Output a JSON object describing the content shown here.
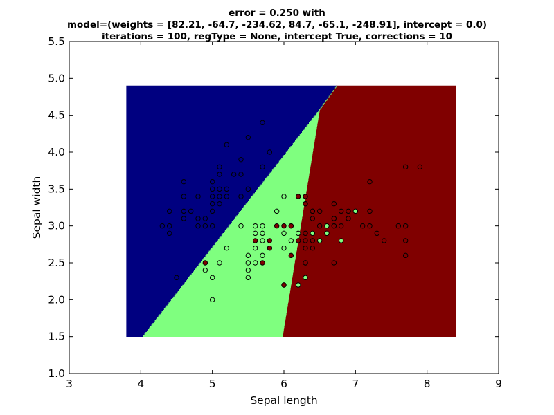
{
  "chart_data": {
    "type": "scatter",
    "title_lines": [
      "error = 0.250 with",
      "model=(weights = [82.21, -64.7, -234.62, 84.7, -65.1, -248.91], intercept = 0.0)",
      "iterations = 100, regType = None, intercept True, corrections = 10"
    ],
    "xlabel": "Sepal length",
    "ylabel": "Sepal width",
    "xlim": [
      3,
      9
    ],
    "ylim": [
      1.0,
      5.5
    ],
    "xticks": [
      "3",
      "4",
      "5",
      "6",
      "7",
      "8",
      "9"
    ],
    "yticks": [
      "1.0",
      "1.5",
      "2.0",
      "2.5",
      "3.0",
      "3.5",
      "4.0",
      "4.5",
      "5.0",
      "5.5"
    ],
    "grid": false,
    "legend": "none",
    "colors": {
      "class0": "#000080",
      "class1": "#7fff7f",
      "class2": "#800000"
    },
    "decision_regions": {
      "x_range": [
        3.8,
        8.4
      ],
      "y_range": [
        1.5,
        4.9
      ],
      "boundary_0_1": [
        [
          4.03,
          1.5
        ],
        [
          6.52,
          4.6
        ],
        [
          6.74,
          4.9
        ]
      ],
      "boundary_1_2": [
        [
          5.98,
          1.5
        ],
        [
          6.52,
          4.7
        ]
      ]
    },
    "points": [
      {
        "x": 4.3,
        "y": 3.0,
        "c": 0
      },
      {
        "x": 4.4,
        "y": 2.9,
        "c": 0
      },
      {
        "x": 4.4,
        "y": 3.0,
        "c": 0
      },
      {
        "x": 4.4,
        "y": 3.2,
        "c": 0
      },
      {
        "x": 4.5,
        "y": 2.3,
        "c": 0
      },
      {
        "x": 4.6,
        "y": 3.1,
        "c": 0
      },
      {
        "x": 4.6,
        "y": 3.2,
        "c": 0
      },
      {
        "x": 4.6,
        "y": 3.4,
        "c": 0
      },
      {
        "x": 4.6,
        "y": 3.6,
        "c": 0
      },
      {
        "x": 4.7,
        "y": 3.2,
        "c": 0
      },
      {
        "x": 4.8,
        "y": 3.0,
        "c": 0
      },
      {
        "x": 4.8,
        "y": 3.1,
        "c": 0
      },
      {
        "x": 4.8,
        "y": 3.4,
        "c": 0
      },
      {
        "x": 4.9,
        "y": 3.0,
        "c": 0
      },
      {
        "x": 4.9,
        "y": 3.1,
        "c": 0
      },
      {
        "x": 5.0,
        "y": 3.0,
        "c": 0
      },
      {
        "x": 5.0,
        "y": 3.2,
        "c": 0
      },
      {
        "x": 5.0,
        "y": 3.3,
        "c": 0
      },
      {
        "x": 5.0,
        "y": 3.4,
        "c": 0
      },
      {
        "x": 5.0,
        "y": 3.5,
        "c": 0
      },
      {
        "x": 5.0,
        "y": 3.6,
        "c": 0
      },
      {
        "x": 5.1,
        "y": 3.3,
        "c": 0
      },
      {
        "x": 5.1,
        "y": 3.4,
        "c": 0
      },
      {
        "x": 5.1,
        "y": 3.5,
        "c": 0
      },
      {
        "x": 5.1,
        "y": 3.7,
        "c": 0
      },
      {
        "x": 5.1,
        "y": 3.8,
        "c": 0
      },
      {
        "x": 5.2,
        "y": 3.4,
        "c": 0
      },
      {
        "x": 5.2,
        "y": 3.5,
        "c": 0
      },
      {
        "x": 5.2,
        "y": 4.1,
        "c": 0
      },
      {
        "x": 5.3,
        "y": 3.7,
        "c": 0
      },
      {
        "x": 5.4,
        "y": 3.4,
        "c": 0
      },
      {
        "x": 5.4,
        "y": 3.7,
        "c": 0
      },
      {
        "x": 5.4,
        "y": 3.9,
        "c": 0
      },
      {
        "x": 5.5,
        "y": 3.5,
        "c": 0
      },
      {
        "x": 5.5,
        "y": 4.2,
        "c": 0
      },
      {
        "x": 5.7,
        "y": 3.8,
        "c": 0
      },
      {
        "x": 5.7,
        "y": 4.4,
        "c": 0
      },
      {
        "x": 5.8,
        "y": 4.0,
        "c": 0
      },
      {
        "x": 4.9,
        "y": 2.4,
        "c": 1
      },
      {
        "x": 5.0,
        "y": 2.0,
        "c": 1
      },
      {
        "x": 5.0,
        "y": 2.3,
        "c": 1
      },
      {
        "x": 5.1,
        "y": 2.5,
        "c": 1
      },
      {
        "x": 5.2,
        "y": 2.7,
        "c": 1
      },
      {
        "x": 5.4,
        "y": 3.0,
        "c": 1
      },
      {
        "x": 5.5,
        "y": 2.3,
        "c": 1
      },
      {
        "x": 5.5,
        "y": 2.4,
        "c": 1
      },
      {
        "x": 5.5,
        "y": 2.5,
        "c": 1
      },
      {
        "x": 5.5,
        "y": 2.6,
        "c": 1
      },
      {
        "x": 5.6,
        "y": 2.5,
        "c": 1
      },
      {
        "x": 5.6,
        "y": 2.7,
        "c": 1
      },
      {
        "x": 5.6,
        "y": 2.9,
        "c": 1
      },
      {
        "x": 5.6,
        "y": 3.0,
        "c": 1
      },
      {
        "x": 5.7,
        "y": 2.6,
        "c": 1
      },
      {
        "x": 5.7,
        "y": 2.8,
        "c": 1
      },
      {
        "x": 5.7,
        "y": 2.9,
        "c": 1
      },
      {
        "x": 5.7,
        "y": 3.0,
        "c": 1
      },
      {
        "x": 5.8,
        "y": 2.7,
        "c": 1
      },
      {
        "x": 5.9,
        "y": 3.2,
        "c": 1
      },
      {
        "x": 6.0,
        "y": 2.2,
        "c": 1
      },
      {
        "x": 6.0,
        "y": 2.7,
        "c": 1
      },
      {
        "x": 6.0,
        "y": 2.9,
        "c": 1
      },
      {
        "x": 6.0,
        "y": 3.4,
        "c": 1
      },
      {
        "x": 6.1,
        "y": 2.8,
        "c": 1
      },
      {
        "x": 6.1,
        "y": 3.0,
        "c": 1
      },
      {
        "x": 6.2,
        "y": 2.2,
        "c": 1
      },
      {
        "x": 6.2,
        "y": 2.9,
        "c": 1
      },
      {
        "x": 6.3,
        "y": 2.3,
        "c": 1
      },
      {
        "x": 6.3,
        "y": 2.5,
        "c": 1
      },
      {
        "x": 6.3,
        "y": 3.3,
        "c": 1
      },
      {
        "x": 6.4,
        "y": 2.9,
        "c": 1
      },
      {
        "x": 6.4,
        "y": 3.2,
        "c": 1
      },
      {
        "x": 6.5,
        "y": 2.8,
        "c": 1
      },
      {
        "x": 6.6,
        "y": 2.9,
        "c": 1
      },
      {
        "x": 6.6,
        "y": 3.0,
        "c": 1
      },
      {
        "x": 6.7,
        "y": 3.0,
        "c": 1
      },
      {
        "x": 6.7,
        "y": 3.1,
        "c": 1
      },
      {
        "x": 6.8,
        "y": 2.8,
        "c": 1
      },
      {
        "x": 6.9,
        "y": 3.1,
        "c": 1
      },
      {
        "x": 7.0,
        "y": 3.2,
        "c": 1
      },
      {
        "x": 4.9,
        "y": 2.5,
        "c": 2
      },
      {
        "x": 5.6,
        "y": 2.8,
        "c": 2
      },
      {
        "x": 5.7,
        "y": 2.5,
        "c": 2
      },
      {
        "x": 5.8,
        "y": 2.7,
        "c": 2
      },
      {
        "x": 5.8,
        "y": 2.8,
        "c": 2
      },
      {
        "x": 5.9,
        "y": 3.0,
        "c": 2
      },
      {
        "x": 6.0,
        "y": 2.2,
        "c": 2
      },
      {
        "x": 6.0,
        "y": 3.0,
        "c": 2
      },
      {
        "x": 6.1,
        "y": 2.6,
        "c": 2
      },
      {
        "x": 6.1,
        "y": 3.0,
        "c": 2
      },
      {
        "x": 6.2,
        "y": 2.8,
        "c": 2
      },
      {
        "x": 6.2,
        "y": 3.4,
        "c": 2
      },
      {
        "x": 6.3,
        "y": 2.5,
        "c": 2
      },
      {
        "x": 6.3,
        "y": 2.7,
        "c": 2
      },
      {
        "x": 6.3,
        "y": 2.8,
        "c": 2
      },
      {
        "x": 6.3,
        "y": 2.9,
        "c": 2
      },
      {
        "x": 6.3,
        "y": 3.3,
        "c": 2
      },
      {
        "x": 6.3,
        "y": 3.4,
        "c": 2
      },
      {
        "x": 6.4,
        "y": 2.7,
        "c": 2
      },
      {
        "x": 6.4,
        "y": 2.8,
        "c": 2
      },
      {
        "x": 6.4,
        "y": 3.1,
        "c": 2
      },
      {
        "x": 6.4,
        "y": 3.2,
        "c": 2
      },
      {
        "x": 6.5,
        "y": 3.0,
        "c": 2
      },
      {
        "x": 6.5,
        "y": 3.2,
        "c": 2
      },
      {
        "x": 6.7,
        "y": 2.5,
        "c": 2
      },
      {
        "x": 6.7,
        "y": 3.0,
        "c": 2
      },
      {
        "x": 6.7,
        "y": 3.1,
        "c": 2
      },
      {
        "x": 6.7,
        "y": 3.3,
        "c": 2
      },
      {
        "x": 6.8,
        "y": 3.0,
        "c": 2
      },
      {
        "x": 6.8,
        "y": 3.2,
        "c": 2
      },
      {
        "x": 6.9,
        "y": 3.1,
        "c": 2
      },
      {
        "x": 6.9,
        "y": 3.2,
        "c": 2
      },
      {
        "x": 7.1,
        "y": 3.0,
        "c": 2
      },
      {
        "x": 7.2,
        "y": 3.0,
        "c": 2
      },
      {
        "x": 7.2,
        "y": 3.2,
        "c": 2
      },
      {
        "x": 7.2,
        "y": 3.6,
        "c": 2
      },
      {
        "x": 7.3,
        "y": 2.9,
        "c": 2
      },
      {
        "x": 7.4,
        "y": 2.8,
        "c": 2
      },
      {
        "x": 7.6,
        "y": 3.0,
        "c": 2
      },
      {
        "x": 7.7,
        "y": 2.6,
        "c": 2
      },
      {
        "x": 7.7,
        "y": 2.8,
        "c": 2
      },
      {
        "x": 7.7,
        "y": 3.0,
        "c": 2
      },
      {
        "x": 7.7,
        "y": 3.8,
        "c": 2
      },
      {
        "x": 7.9,
        "y": 3.8,
        "c": 2
      }
    ]
  }
}
